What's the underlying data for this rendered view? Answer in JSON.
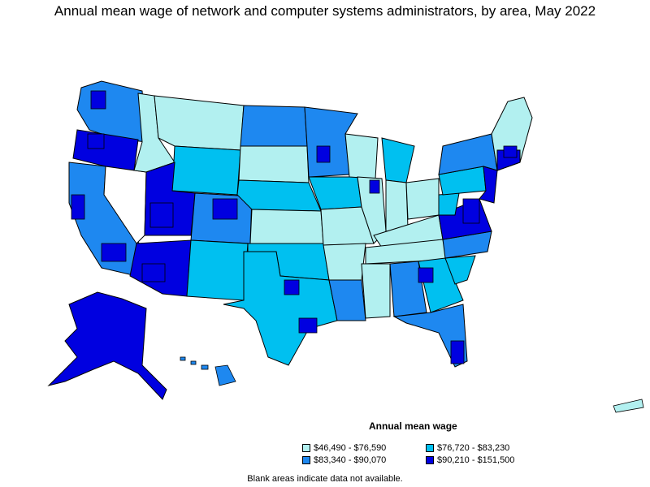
{
  "title": "Annual mean wage of network and computer systems administrators, by area, May 2022",
  "legend": {
    "title": "Annual mean wage",
    "items": [
      {
        "label": "$46,490 - $76,590",
        "color": "#b2f0f0"
      },
      {
        "label": "$76,720 - $83,230",
        "color": "#00c0f0"
      },
      {
        "label": "$83,340 - $90,070",
        "color": "#1e88f0"
      },
      {
        "label": "$90,210 - $151,500",
        "color": "#0000e0"
      }
    ]
  },
  "footnote": "Blank areas indicate data not available.",
  "colors": {
    "tier1": "#b2f0f0",
    "tier2": "#00c0f0",
    "tier3": "#1e88f0",
    "tier4": "#0000e0",
    "border": "#000000",
    "no_data": "#ffffff"
  }
}
